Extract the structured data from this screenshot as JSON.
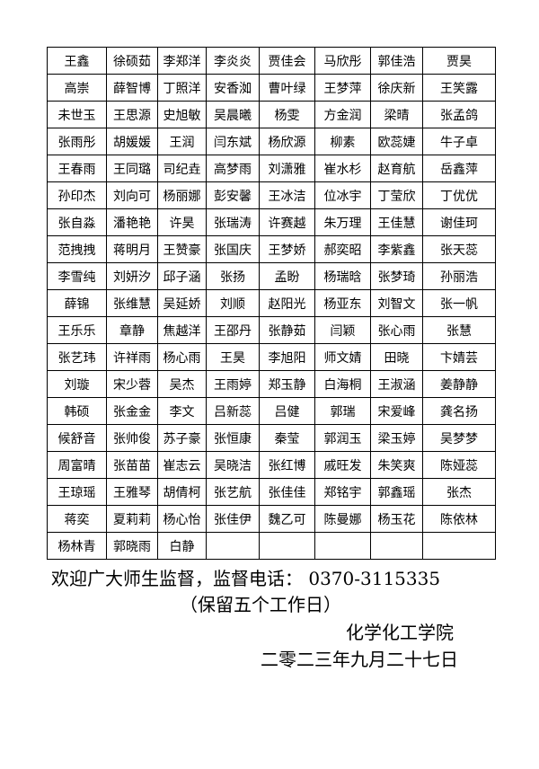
{
  "table": {
    "rows": [
      [
        "王鑫",
        "徐硕茹",
        "李郑洋",
        "李炎炎",
        "贾佳会",
        "马欣彤",
        "郭佳浩",
        "贾昊"
      ],
      [
        "高崇",
        "薛智博",
        "丁照洋",
        "安香洳",
        "曹叶绿",
        "王梦萍",
        "徐庆新",
        "王笑露"
      ],
      [
        "未世玉",
        "王思源",
        "史旭敏",
        "吴晨曦",
        "杨雯",
        "方金润",
        "梁晴",
        "张孟鸽"
      ],
      [
        "张雨彤",
        "胡媛媛",
        "王润",
        "闫东斌",
        "杨欣源",
        "柳素",
        "欧蕊婕",
        "牛子卓"
      ],
      [
        "王春雨",
        "王同璐",
        "司纪垚",
        "高梦雨",
        "刘潇雅",
        "崔水杉",
        "赵育航",
        "岳鑫萍"
      ],
      [
        "孙印杰",
        "刘向可",
        "杨丽娜",
        "彭安馨",
        "王冰洁",
        "位冰宇",
        "丁莹欣",
        "丁优优"
      ],
      [
        "张自淼",
        "潘艳艳",
        "许昊",
        "张瑞涛",
        "许赛越",
        "朱万理",
        "王佳慧",
        "谢佳珂"
      ],
      [
        "范拽拽",
        "蒋明月",
        "王赞豪",
        "张国庆",
        "王梦娇",
        "郝奕昭",
        "李紫鑫",
        "张天蕊"
      ],
      [
        "李雪纯",
        "刘妍汐",
        "邱子涵",
        "张扬",
        "孟盼",
        "杨瑞晗",
        "张梦琦",
        "孙丽浩"
      ],
      [
        "薛锦",
        "张维慧",
        "吴延娇",
        "刘顺",
        "赵阳光",
        "杨亚东",
        "刘智文",
        "张一帆"
      ],
      [
        "王乐乐",
        "章静",
        "焦越洋",
        "王邵丹",
        "张静茹",
        "闫颖",
        "张心雨",
        "张慧"
      ],
      [
        "张艺玮",
        "许祥雨",
        "杨心雨",
        "王昊",
        "李旭阳",
        "师文婧",
        "田晓",
        "卞婧芸"
      ],
      [
        "刘璇",
        "宋少蓉",
        "吴杰",
        "王雨婷",
        "郑玉静",
        "白海桐",
        "王淑涵",
        "姜静静"
      ],
      [
        "韩硕",
        "张金金",
        "李文",
        "吕新蕊",
        "吕健",
        "郭瑞",
        "宋爱峰",
        "龚名扬"
      ],
      [
        "候舒音",
        "张帅俊",
        "苏子豪",
        "张恒康",
        "秦莹",
        "郭润玉",
        "梁玉婷",
        "吴梦梦"
      ],
      [
        "周富晴",
        "张苗苗",
        "崔志云",
        "吴晓洁",
        "张红博",
        "戚旺发",
        "朱笑爽",
        "陈娅蕊"
      ],
      [
        "王琼瑶",
        "王雅琴",
        "胡倩柯",
        "张艺航",
        "张佳佳",
        "郑铭宇",
        "郭鑫瑶",
        "张杰"
      ],
      [
        "蒋奕",
        "夏莉莉",
        "杨心怡",
        "张佳伊",
        "魏乙可",
        "陈曼娜",
        "杨玉花",
        "陈依林"
      ],
      [
        "杨林青",
        "郭晓雨",
        "白静",
        "",
        "",
        "",
        "",
        ""
      ]
    ]
  },
  "footer": {
    "notice": "欢迎广大师生监督，监督电话：  0370-3115335",
    "note": "（保留五个工作日）",
    "department": "化学化工学院",
    "date": "二零二三年九月二十七日"
  }
}
